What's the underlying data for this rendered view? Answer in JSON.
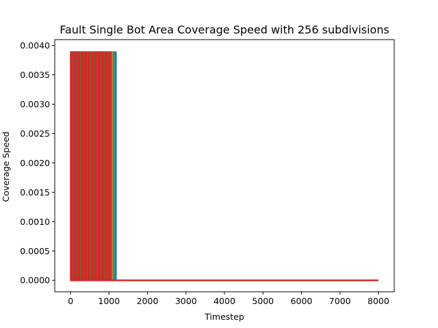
{
  "chart_data": {
    "type": "line",
    "title": "Fault Single Bot Area Coverage Speed with 256 subdivisions",
    "xlabel": "Timestep",
    "ylabel": "Coverage Speed",
    "xlim": [
      -410,
      8410
    ],
    "ylim": [
      -0.000195,
      0.0041
    ],
    "grid": false,
    "legend": "none",
    "xticks": [
      0,
      1000,
      2000,
      3000,
      4000,
      5000,
      6000,
      7000,
      8000
    ],
    "xtick_labels": [
      "0",
      "1000",
      "2000",
      "3000",
      "4000",
      "5000",
      "6000",
      "7000",
      "8000"
    ],
    "yticks": [
      0.0,
      0.0005,
      0.001,
      0.0015,
      0.002,
      0.0025,
      0.003,
      0.0035,
      0.004
    ],
    "ytick_labels": [
      "0.0000",
      "0.0005",
      "0.0010",
      "0.0015",
      "0.0020",
      "0.0025",
      "0.0030",
      "0.0035",
      "0.0040"
    ],
    "x_end": 8000,
    "spike_height": 0.0039,
    "series": [
      {
        "color": "#1f77b4",
        "spike_x": [
          40,
          120,
          210,
          300,
          390,
          470,
          560,
          650,
          740,
          830,
          910,
          1000,
          1080,
          1160,
          1180
        ]
      },
      {
        "color": "#ff7f0e",
        "spike_x": [
          60,
          150,
          240,
          330,
          420,
          510,
          600,
          690,
          780,
          860,
          940,
          1020,
          1100
        ]
      },
      {
        "color": "#2ca02c",
        "spike_x": [
          80,
          170,
          260,
          350,
          440,
          530,
          620,
          710,
          800,
          880,
          960,
          1040,
          1120
        ]
      },
      {
        "color": "#d62728",
        "spike_x": [
          5,
          45,
          95,
          140,
          190,
          230,
          280,
          320,
          370,
          410,
          460,
          500,
          550,
          590,
          640,
          680,
          730,
          770,
          820,
          860,
          910,
          950,
          1000,
          1040
        ]
      }
    ]
  }
}
